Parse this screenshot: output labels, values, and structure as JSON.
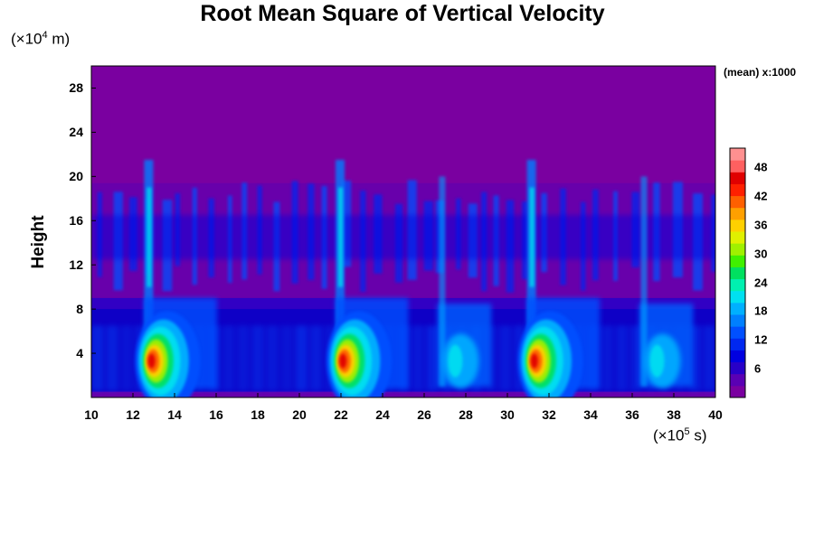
{
  "chart_data": {
    "type": "heatmap",
    "title": "Root Mean Square of Vertical Velocity",
    "ylabel": "Height",
    "y_unit": {
      "prefix": "(×10",
      "exp": "4",
      "suffix": " m)"
    },
    "x_unit": {
      "prefix": "(×10",
      "exp": "5",
      "suffix": " s)"
    },
    "colorbar_note": "(mean) x:1000",
    "xlim": [
      10,
      40
    ],
    "ylim": [
      0,
      30
    ],
    "x_ticks": [
      "10",
      "12",
      "14",
      "16",
      "18",
      "20",
      "22",
      "24",
      "26",
      "28",
      "30",
      "32",
      "34",
      "36",
      "38",
      "40"
    ],
    "y_ticks": [
      "4",
      "8",
      "12",
      "16",
      "20",
      "24",
      "28"
    ],
    "colorbar": {
      "min": 0,
      "max": 52,
      "ticks": [
        "6",
        "12",
        "18",
        "24",
        "30",
        "36",
        "42",
        "48"
      ],
      "colors": [
        "#7a00a0",
        "#5a00b4",
        "#2800c8",
        "#0000e0",
        "#0028f0",
        "#0050ff",
        "#0080ff",
        "#00b0ff",
        "#00e0f0",
        "#00f0b0",
        "#00e060",
        "#40f000",
        "#a0f000",
        "#e0f000",
        "#ffd000",
        "#ffa000",
        "#ff6000",
        "#ff2000",
        "#e00000",
        "#ff6060",
        "#ff9090"
      ]
    },
    "background_color": "#7a00a0",
    "deep_convection_events_x": [
      12.8,
      22.0,
      31.2
    ],
    "shallow_events_x": [
      26.8,
      36.5
    ],
    "max_value_approx": 52,
    "grid": false
  }
}
